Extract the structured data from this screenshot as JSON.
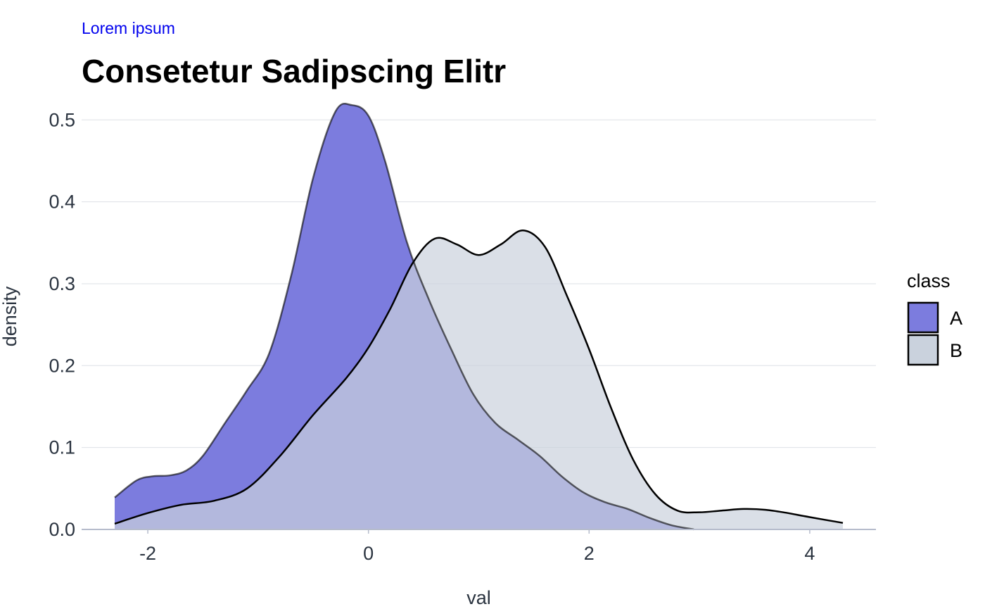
{
  "chart_data": {
    "type": "area",
    "subtitle": "Lorem ipsum",
    "title": "Consetetur Sadipscing Elitr",
    "xlabel": "val",
    "ylabel": "density",
    "xlim": [
      -2.6,
      4.6
    ],
    "ylim": [
      0,
      0.52
    ],
    "xticks": [
      -2,
      0,
      2,
      4
    ],
    "yticks": [
      0.0,
      0.1,
      0.2,
      0.3,
      0.4,
      0.5
    ],
    "xtick_labels": [
      "-2",
      "0",
      "2",
      "4"
    ],
    "ytick_labels": [
      "0.0",
      "0.1",
      "0.2",
      "0.3",
      "0.4",
      "0.5"
    ],
    "grid": "horizontal",
    "legend": {
      "title": "class",
      "position": "right",
      "entries": [
        "A",
        "B"
      ]
    },
    "series": [
      {
        "name": "A",
        "color": "#7c7cde",
        "x": [
          -2.3,
          -2.1,
          -1.95,
          -1.8,
          -1.65,
          -1.5,
          -1.3,
          -1.1,
          -0.9,
          -0.7,
          -0.5,
          -0.3,
          -0.15,
          0.0,
          0.15,
          0.35,
          0.55,
          0.75,
          0.95,
          1.15,
          1.35,
          1.55,
          1.75,
          1.95,
          2.15,
          2.35,
          2.55,
          2.75,
          2.95
        ],
        "values": [
          0.039,
          0.06,
          0.065,
          0.066,
          0.072,
          0.09,
          0.13,
          0.17,
          0.215,
          0.31,
          0.43,
          0.51,
          0.518,
          0.505,
          0.45,
          0.35,
          0.28,
          0.22,
          0.165,
          0.13,
          0.11,
          0.09,
          0.065,
          0.045,
          0.033,
          0.025,
          0.014,
          0.005,
          0.0
        ]
      },
      {
        "name": "B",
        "color": "#cad2dd",
        "x": [
          -2.3,
          -2.0,
          -1.7,
          -1.4,
          -1.1,
          -0.8,
          -0.5,
          -0.2,
          0.0,
          0.2,
          0.4,
          0.6,
          0.8,
          1.0,
          1.2,
          1.4,
          1.6,
          1.8,
          2.0,
          2.2,
          2.4,
          2.6,
          2.8,
          3.0,
          3.2,
          3.4,
          3.6,
          3.8,
          4.0,
          4.3
        ],
        "values": [
          0.007,
          0.02,
          0.03,
          0.035,
          0.05,
          0.09,
          0.14,
          0.185,
          0.222,
          0.27,
          0.325,
          0.355,
          0.348,
          0.335,
          0.348,
          0.365,
          0.345,
          0.285,
          0.22,
          0.148,
          0.085,
          0.043,
          0.023,
          0.021,
          0.023,
          0.025,
          0.024,
          0.02,
          0.015,
          0.008
        ]
      }
    ]
  }
}
